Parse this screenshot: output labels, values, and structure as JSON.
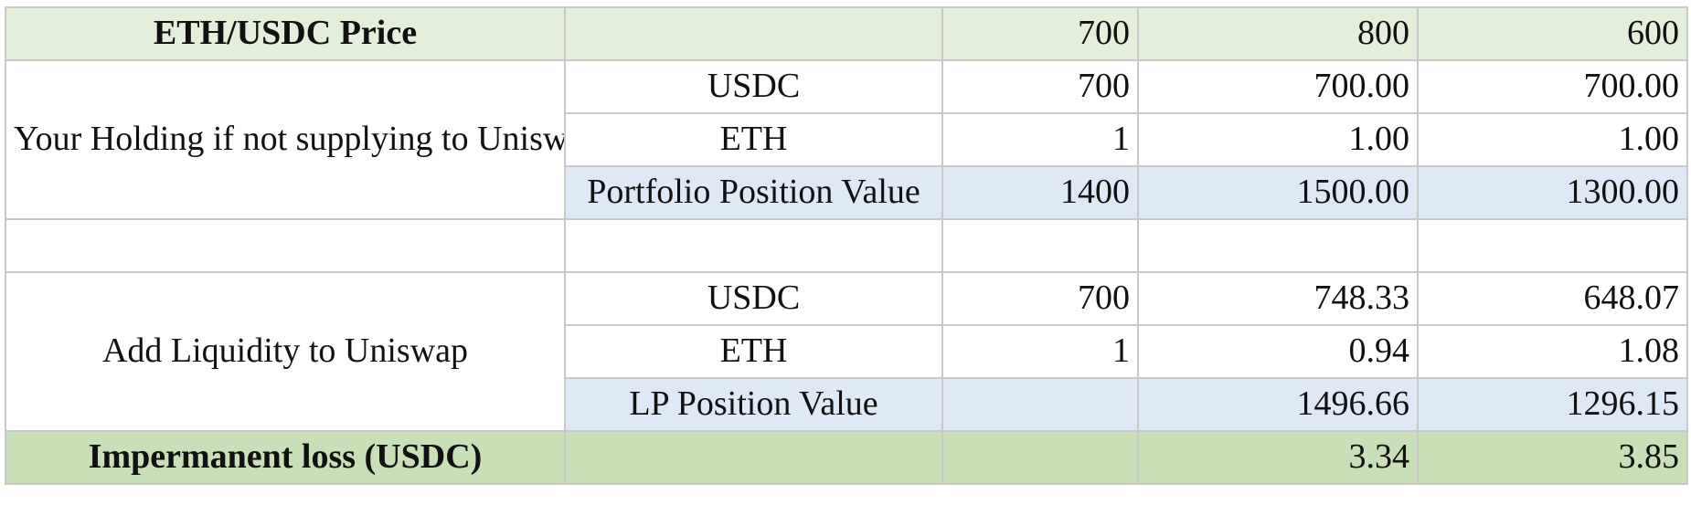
{
  "header": {
    "label": "ETH/USDC Price",
    "sub": "",
    "prices": [
      "700",
      "800",
      "600"
    ]
  },
  "holding": {
    "label": "Your Holding if not supplying to Uniswap",
    "rows": [
      {
        "asset": "USDC",
        "values": [
          "700",
          "700.00",
          "700.00"
        ]
      },
      {
        "asset": "ETH",
        "values": [
          "1",
          "1.00",
          "1.00"
        ]
      },
      {
        "asset": "Portfolio Position Value",
        "values": [
          "1400",
          "1500.00",
          "1300.00"
        ]
      }
    ]
  },
  "liquidity": {
    "label": "Add Liquidity to Uniswap",
    "rows": [
      {
        "asset": "USDC",
        "values": [
          "700",
          "748.33",
          "648.07"
        ]
      },
      {
        "asset": "ETH",
        "values": [
          "1",
          "0.94",
          "1.08"
        ]
      },
      {
        "asset": "LP Position Value",
        "values": [
          "",
          "1496.66",
          "1296.15"
        ]
      }
    ]
  },
  "loss": {
    "label": "Impermanent loss (USDC)",
    "values": [
      "",
      "",
      "3.34",
      "3.85"
    ]
  },
  "colors": {
    "header_bg": "#e3efdb",
    "value_row_bg": "#dfe9f6",
    "loss_row_bg": "#c9dfb7",
    "grid_line": "#c9c9c9"
  }
}
